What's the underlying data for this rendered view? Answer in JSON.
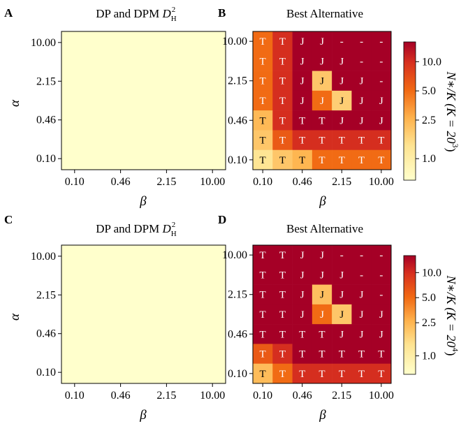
{
  "panels": [
    {
      "letter": "A",
      "title": "DP and DPM ",
      "title_math": "D",
      "title_sub": "H",
      "title_sup": "2",
      "kind": "uniform",
      "fill_color": "#ffffcc"
    },
    {
      "letter": "B",
      "title": "Best Alternative",
      "kind": "heatmap",
      "colorbar_label": "N∗/K  (K = 20",
      "colorbar_exp": "3",
      "colorbar_close": ")"
    },
    {
      "letter": "C",
      "title": "DP and DPM ",
      "title_math": "D",
      "title_sub": "H",
      "title_sup": "2",
      "kind": "uniform",
      "fill_color": "#ffffcc"
    },
    {
      "letter": "D",
      "title": "Best Alternative",
      "kind": "heatmap",
      "colorbar_label": "N∗/K  (K = 20",
      "colorbar_exp": "4",
      "colorbar_close": ")"
    }
  ],
  "chart_data": [
    {
      "type": "heatmap",
      "panel": "A",
      "title": "DP and DPM D_H^2",
      "xlabel": "β",
      "ylabel": "α",
      "x_ticks": [
        "0.10",
        "0.46",
        "2.15",
        "10.00"
      ],
      "y_ticks": [
        "0.10",
        "0.46",
        "2.15",
        "10.00"
      ],
      "note": "uniform field"
    },
    {
      "type": "heatmap",
      "panel": "B",
      "title": "Best Alternative",
      "xlabel": "β",
      "ylabel": "",
      "x_ticks": [
        "0.10",
        "0.46",
        "2.15",
        "10.00"
      ],
      "y_ticks": [
        "0.10",
        "0.46",
        "2.15",
        "10.00"
      ],
      "colorbar": {
        "scale": "log",
        "range": [
          0.6,
          16
        ],
        "ticks": [
          "1.0",
          "2.5",
          "5.0",
          "10.0"
        ]
      },
      "rows_top_to_bottom": {
        "labels": [
          [
            "T",
            "T",
            "J",
            "J",
            "-",
            "-",
            "-"
          ],
          [
            "T",
            "T",
            "J",
            "J",
            "J",
            "-",
            "-"
          ],
          [
            "T",
            "T",
            "J",
            "J",
            "J",
            "J",
            "-"
          ],
          [
            "T",
            "T",
            "J",
            "J",
            "J",
            "J",
            "J"
          ],
          [
            "T",
            "T",
            "T",
            "T",
            "J",
            "J",
            "J"
          ],
          [
            "T",
            "T",
            "T",
            "T",
            "T",
            "T",
            "T"
          ],
          [
            "T",
            "T",
            "T",
            "T",
            "T",
            "T",
            "T"
          ]
        ],
        "values": [
          [
            5,
            10,
            16,
            16,
            16,
            16,
            16
          ],
          [
            5,
            10,
            16,
            16,
            16,
            16,
            16
          ],
          [
            5,
            10,
            16,
            2,
            16,
            16,
            16
          ],
          [
            5,
            10,
            16,
            5,
            1.8,
            16,
            16
          ],
          [
            2.4,
            10,
            16,
            16,
            16,
            16,
            16
          ],
          [
            2,
            6,
            10,
            10,
            10,
            10,
            10
          ],
          [
            1.3,
            2,
            2.5,
            5,
            5,
            5,
            5
          ]
        ]
      }
    },
    {
      "type": "heatmap",
      "panel": "C",
      "title": "DP and DPM D_H^2",
      "xlabel": "β",
      "ylabel": "α",
      "x_ticks": [
        "0.10",
        "0.46",
        "2.15",
        "10.00"
      ],
      "y_ticks": [
        "0.10",
        "0.46",
        "2.15",
        "10.00"
      ],
      "note": "uniform field"
    },
    {
      "type": "heatmap",
      "panel": "D",
      "title": "Best Alternative",
      "xlabel": "β",
      "ylabel": "",
      "x_ticks": [
        "0.10",
        "0.46",
        "2.15",
        "10.00"
      ],
      "y_ticks": [
        "0.10",
        "0.46",
        "2.15",
        "10.00"
      ],
      "colorbar": {
        "scale": "log",
        "range": [
          0.6,
          16
        ],
        "ticks": [
          "1.0",
          "2.5",
          "5.0",
          "10.0"
        ]
      },
      "rows_top_to_bottom": {
        "labels": [
          [
            "T",
            "T",
            "J",
            "J",
            "-",
            "-",
            "-"
          ],
          [
            "T",
            "T",
            "J",
            "J",
            "J",
            "-",
            "-"
          ],
          [
            "T",
            "T",
            "J",
            "J",
            "J",
            "J",
            "-"
          ],
          [
            "T",
            "T",
            "J",
            "J",
            "J",
            "J",
            "J"
          ],
          [
            "T",
            "T",
            "T",
            "T",
            "J",
            "J",
            "J"
          ],
          [
            "T",
            "T",
            "T",
            "T",
            "T",
            "T",
            "T"
          ],
          [
            "T",
            "T",
            "T",
            "T",
            "T",
            "T",
            "T"
          ]
        ],
        "values": [
          [
            16,
            16,
            16,
            16,
            16,
            16,
            16
          ],
          [
            16,
            16,
            16,
            16,
            16,
            16,
            16
          ],
          [
            16,
            16,
            16,
            2.2,
            16,
            16,
            16
          ],
          [
            16,
            16,
            16,
            5,
            2,
            16,
            16
          ],
          [
            16,
            16,
            16,
            16,
            16,
            16,
            16
          ],
          [
            6,
            10,
            16,
            16,
            16,
            16,
            16
          ],
          [
            2.3,
            5,
            10,
            10,
            10,
            10,
            10
          ]
        ]
      }
    }
  ]
}
